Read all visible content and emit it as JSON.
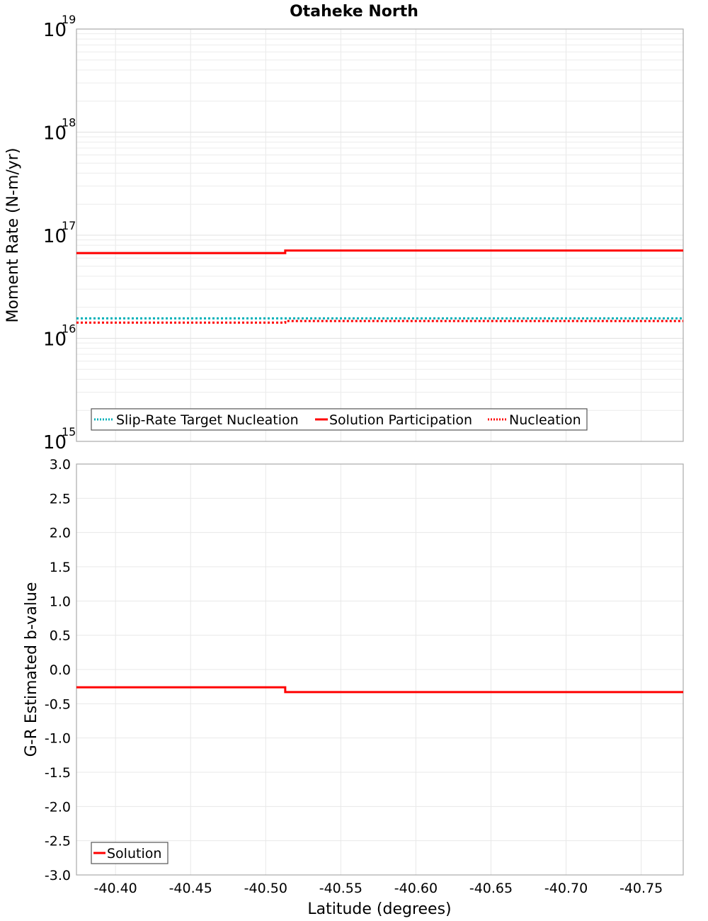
{
  "title": "Otaheke North",
  "top_panel": {
    "ylabel": "Moment Rate (N-m/yr)",
    "ytick_labels": [
      {
        "base": "10",
        "exp": "19"
      },
      {
        "base": "10",
        "exp": "18"
      },
      {
        "base": "10",
        "exp": "17"
      },
      {
        "base": "10",
        "exp": "16"
      },
      {
        "base": "10",
        "exp": "15"
      }
    ],
    "legend": [
      {
        "label": "Slip-Rate Target Nucleation",
        "color": "#00b0b8",
        "style": "dotted"
      },
      {
        "label": "Solution Participation",
        "color": "#ff0000",
        "style": "solid"
      },
      {
        "label": "Nucleation",
        "color": "#ff0000",
        "style": "dotted"
      }
    ]
  },
  "bottom_panel": {
    "ylabel": "G-R Estimated b-value",
    "ytick_labels": [
      "3.0",
      "2.5",
      "2.0",
      "1.5",
      "1.0",
      "0.5",
      "0.0",
      "-0.5",
      "-1.0",
      "-1.5",
      "-2.0",
      "-2.5",
      "-3.0"
    ],
    "legend": [
      {
        "label": "Solution",
        "color": "#ff0000",
        "style": "solid"
      }
    ]
  },
  "xlabel": "Latitude (degrees)",
  "xtick_labels": [
    "-40.40",
    "-40.45",
    "-40.50",
    "-40.55",
    "-40.60",
    "-40.65",
    "-40.70",
    "-40.75"
  ],
  "chart_data": [
    {
      "type": "line",
      "title": "Otaheke North",
      "xlabel": "Latitude (degrees)",
      "ylabel": "Moment Rate (N-m/yr)",
      "yscale": "log",
      "ylim": [
        1000000000000000.0,
        1e+19
      ],
      "xlim": [
        -40.374,
        -40.778
      ],
      "grid": true,
      "legend_position": "lower-left",
      "x_breaks": [
        -40.374,
        -40.513,
        -40.778
      ],
      "series": [
        {
          "name": "Slip-Rate Target Nucleation",
          "style": "dotted",
          "color": "#00b0b8",
          "values": [
            1.56e+16,
            1.56e+16
          ]
        },
        {
          "name": "Solution Participation",
          "style": "solid",
          "color": "#ff0000",
          "values": [
            6.7e+16,
            7.1e+16
          ]
        },
        {
          "name": "Nucleation",
          "style": "dotted",
          "color": "#ff0000",
          "values": [
            1.42e+16,
            1.47e+16
          ]
        }
      ]
    },
    {
      "type": "line",
      "xlabel": "Latitude (degrees)",
      "ylabel": "G-R Estimated b-value",
      "ylim": [
        -3.0,
        3.0
      ],
      "xlim": [
        -40.374,
        -40.778
      ],
      "grid": true,
      "legend_position": "lower-left",
      "x_breaks": [
        -40.374,
        -40.513,
        -40.778
      ],
      "series": [
        {
          "name": "Solution",
          "style": "solid",
          "color": "#ff0000",
          "values": [
            -0.26,
            -0.33
          ]
        }
      ]
    }
  ]
}
